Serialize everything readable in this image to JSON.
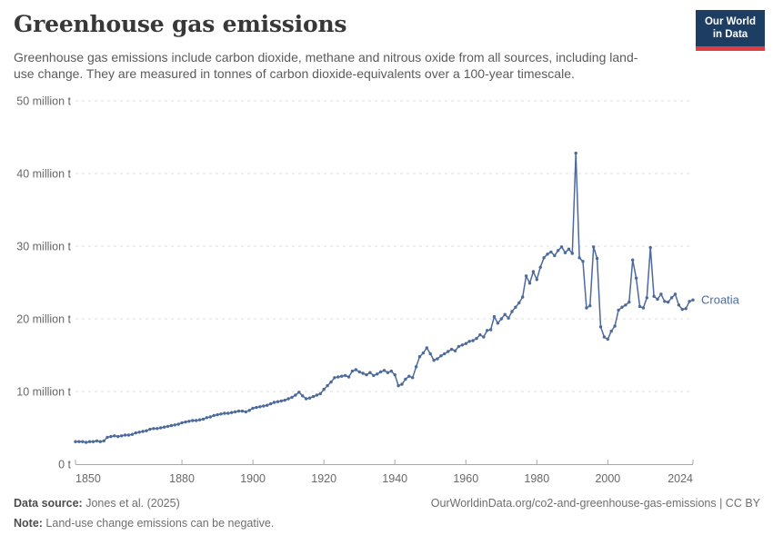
{
  "header": {
    "title": "Greenhouse gas emissions",
    "subtitle": "Greenhouse gas emissions include carbon dioxide, methane and nitrous oxide from all sources, including land-use change. They are measured in tonnes of carbon dioxide-equivalents over a 100-year timescale.",
    "logo": {
      "line1": "Our World",
      "line2": "in Data",
      "bg_color": "#1d3d63",
      "accent_color": "#dc3e42"
    }
  },
  "chart_data": {
    "type": "line",
    "title": "Greenhouse gas emissions",
    "entity": "Croatia",
    "unit": "tonnes of carbon dioxide-equivalents",
    "value_scale": "million tonnes",
    "grid": "dashed-horizontal",
    "legend_position": "end-of-line",
    "xlim": [
      1850,
      2024
    ],
    "ylim": [
      0,
      50
    ],
    "x_ticks": [
      1850,
      1880,
      1900,
      1920,
      1940,
      1960,
      1980,
      2000,
      2024
    ],
    "y_ticks": [
      {
        "value": 0,
        "label": "0 t"
      },
      {
        "value": 10,
        "label": "10 million t"
      },
      {
        "value": 20,
        "label": "20 million t"
      },
      {
        "value": 30,
        "label": "30 million t"
      },
      {
        "value": 40,
        "label": "40 million t"
      },
      {
        "value": 50,
        "label": "50 million t"
      }
    ],
    "series": [
      {
        "name": "Croatia",
        "color": "#4C6A9C",
        "start_year": 1850,
        "values": [
          3.1,
          3.1,
          3.1,
          3.0,
          3.1,
          3.1,
          3.2,
          3.1,
          3.2,
          3.7,
          3.8,
          3.9,
          3.8,
          3.9,
          4.0,
          4.0,
          4.1,
          4.3,
          4.4,
          4.5,
          4.6,
          4.8,
          4.9,
          4.9,
          5.0,
          5.1,
          5.2,
          5.3,
          5.4,
          5.5,
          5.7,
          5.8,
          5.9,
          6.0,
          6.0,
          6.1,
          6.2,
          6.4,
          6.5,
          6.7,
          6.8,
          6.9,
          7.0,
          7.0,
          7.1,
          7.2,
          7.3,
          7.3,
          7.2,
          7.4,
          7.7,
          7.8,
          7.9,
          8.0,
          8.1,
          8.3,
          8.5,
          8.6,
          8.7,
          8.8,
          9.0,
          9.2,
          9.5,
          9.9,
          9.4,
          9.0,
          9.1,
          9.3,
          9.5,
          9.7,
          10.3,
          10.8,
          11.3,
          11.9,
          12.0,
          12.1,
          12.2,
          12.0,
          12.8,
          13.0,
          12.7,
          12.5,
          12.3,
          12.6,
          12.2,
          12.4,
          12.7,
          12.9,
          12.6,
          12.8,
          12.3,
          10.8,
          11.0,
          11.7,
          12.1,
          11.9,
          13.4,
          14.8,
          15.3,
          16.0,
          15.2,
          14.3,
          14.5,
          14.9,
          15.2,
          15.5,
          15.8,
          15.6,
          16.2,
          16.4,
          16.6,
          16.9,
          17.0,
          17.3,
          17.8,
          17.5,
          18.4,
          18.5,
          20.3,
          19.4,
          20.0,
          20.6,
          20.1,
          21.0,
          21.6,
          22.2,
          23.0,
          25.9,
          24.9,
          26.5,
          25.4,
          27.1,
          28.4,
          28.9,
          29.2,
          28.7,
          29.4,
          29.9,
          29.1,
          29.6,
          29.0,
          42.8,
          28.4,
          27.9,
          21.5,
          21.8,
          29.9,
          28.3,
          18.9,
          17.5,
          17.2,
          18.3,
          19.0,
          21.2,
          21.6,
          21.9,
          22.3,
          28.1,
          25.6,
          21.7,
          21.5,
          22.9,
          29.8,
          23.1,
          22.7,
          23.4,
          22.4,
          22.3,
          22.9,
          23.4,
          21.9,
          21.3,
          21.4,
          22.4,
          22.6
        ]
      }
    ]
  },
  "footer": {
    "source_label": "Data source:",
    "source_value": " Jones et al. (2025)",
    "note_label": "Note:",
    "note_value": " Land-use change emissions can be negative.",
    "credit": "OurWorldinData.org/co2-and-greenhouse-gas-emissions | CC BY"
  }
}
